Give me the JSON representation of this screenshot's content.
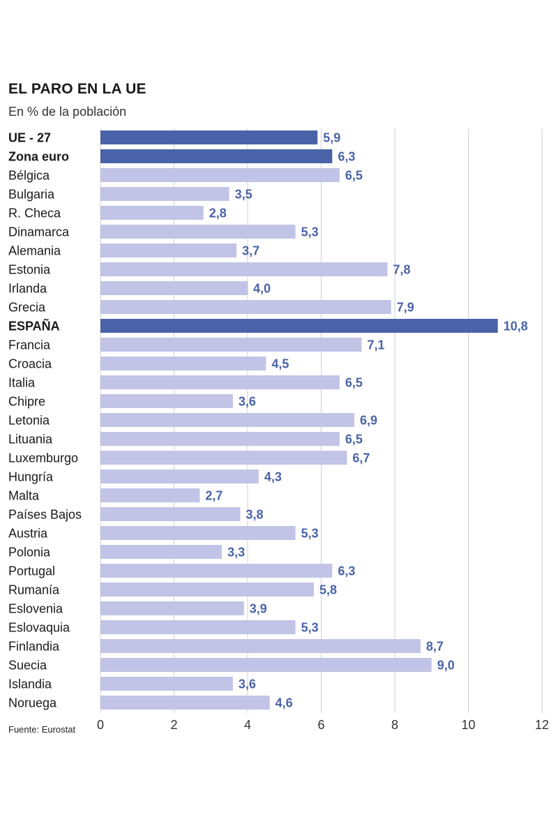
{
  "header": {
    "title": "EL PARO EN LA UE",
    "subtitle": "En % de la población"
  },
  "footer": {
    "source": "Fuente: Eurostat"
  },
  "colors": {
    "highlight": "#4a63a8",
    "normal": "#c1c4e6",
    "grid": "#cfcfcf",
    "value_text": "#4a63a8"
  },
  "chart_data": {
    "type": "bar",
    "orientation": "horizontal",
    "title": "EL PARO EN LA UE",
    "subtitle": "En % de la población",
    "xlabel": "",
    "ylabel": "",
    "xlim": [
      0,
      12
    ],
    "xticks": [
      0,
      2,
      4,
      6,
      8,
      10,
      12
    ],
    "grid": true,
    "categories": [
      "UE - 27",
      "Zona euro",
      "Bélgica",
      "Bulgaria",
      "R. Checa",
      "Dinamarca",
      "Alemania",
      "Estonia",
      "Irlanda",
      "Grecia",
      "ESPAÑA",
      "Francia",
      "Croacia",
      "Italia",
      "Chipre",
      "Letonia",
      "Lituania",
      "Luxemburgo",
      "Hungría",
      "Malta",
      "Países Bajos",
      "Austria",
      "Polonia",
      "Portugal",
      "Rumanía",
      "Eslovenia",
      "Eslovaquia",
      "Finlandia",
      "Suecia",
      "Islandia",
      "Noruega"
    ],
    "values": [
      5.9,
      6.3,
      6.5,
      3.5,
      2.8,
      5.3,
      3.7,
      7.8,
      4.0,
      7.9,
      10.8,
      7.1,
      4.5,
      6.5,
      3.6,
      6.9,
      6.5,
      6.7,
      4.3,
      2.7,
      3.8,
      5.3,
      3.3,
      6.3,
      5.8,
      3.9,
      5.3,
      8.7,
      9.0,
      3.6,
      4.6
    ],
    "value_labels": [
      "5,9",
      "6,3",
      "6,5",
      "3,5",
      "2,8",
      "5,3",
      "3,7",
      "7,8",
      "4,0",
      "7,9",
      "10,8",
      "7,1",
      "4,5",
      "6,5",
      "3,6",
      "6,9",
      "6,5",
      "6,7",
      "4,3",
      "2,7",
      "3,8",
      "5,3",
      "3,3",
      "6,3",
      "5,8",
      "3,9",
      "5,3",
      "8,7",
      "9,0",
      "3,6",
      "4,6"
    ],
    "highlighted": [
      "UE - 27",
      "Zona euro",
      "ESPAÑA"
    ]
  }
}
